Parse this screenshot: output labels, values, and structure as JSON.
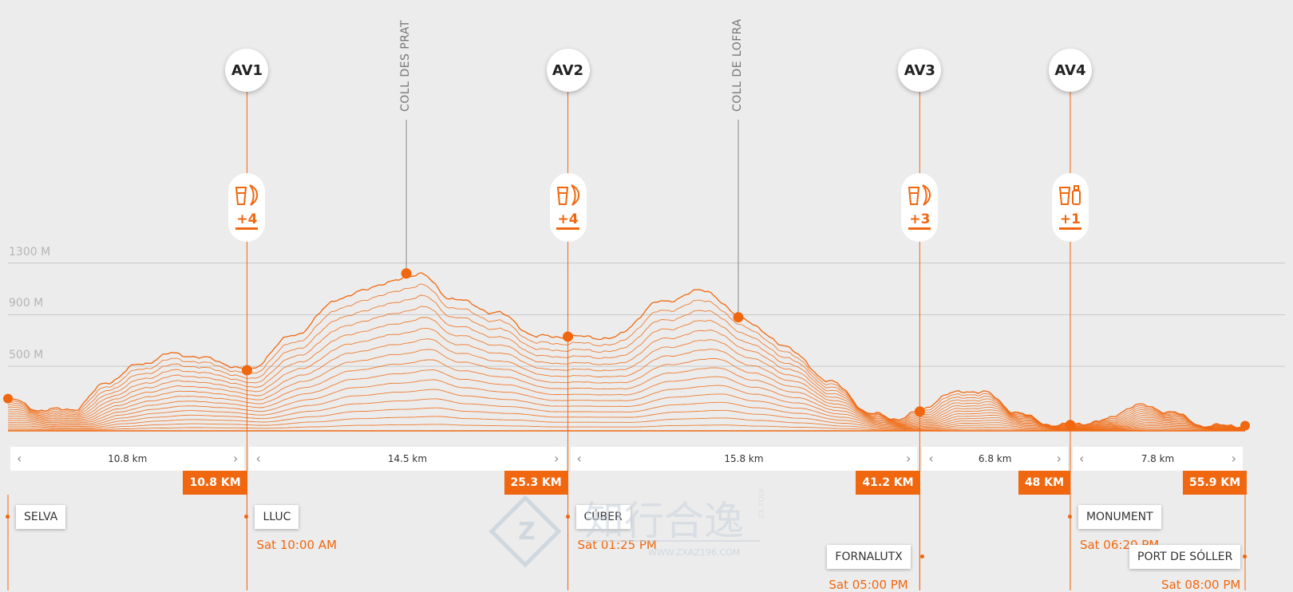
{
  "chart_data": {
    "type": "area",
    "altitude_axis": {
      "labels": [
        "1300 M",
        "900 M",
        "500 M"
      ],
      "values": [
        1300,
        900,
        500
      ],
      "grid": true
    },
    "distance_range_km": [
      0,
      55.9
    ],
    "elevation_profile": {
      "x_km": [
        0,
        1.5,
        3,
        4.5,
        6,
        7.5,
        9,
        10.8,
        13,
        15,
        17,
        18.6,
        20,
        22,
        24,
        25.3,
        27.3,
        29.5,
        31.5,
        33.1,
        35,
        37,
        39,
        40,
        41.2,
        42.5,
        44,
        45.5,
        47,
        48,
        49.5,
        51,
        52.5,
        54,
        55.9
      ],
      "altitude_m": [
        250,
        160,
        170,
        380,
        520,
        600,
        560,
        470,
        750,
        1030,
        1140,
        1220,
        1030,
        920,
        730,
        730,
        720,
        1000,
        1090,
        880,
        670,
        400,
        140,
        90,
        150,
        290,
        310,
        150,
        50,
        45,
        80,
        200,
        150,
        40,
        40
      ]
    },
    "aid_stations": [
      {
        "id": "AV1",
        "km": 10.8,
        "supplies": "+4",
        "altitude_m": 470
      },
      {
        "id": "AV2",
        "km": 25.3,
        "supplies": "+4",
        "altitude_m": 730
      },
      {
        "id": "AV3",
        "km": 41.2,
        "supplies": "+3",
        "altitude_m": 150
      },
      {
        "id": "AV4",
        "km": 48,
        "supplies": "+1",
        "altitude_m": 45
      }
    ],
    "peaks": [
      {
        "name": "COLL DES PRAT",
        "km": 18,
        "altitude_m": 1220
      },
      {
        "name": "COLL DE LOFRA",
        "km": 33,
        "altitude_m": 880
      }
    ],
    "start_point": {
      "km": 0,
      "altitude_m": 250
    },
    "finish_point": {
      "km": 55.9,
      "altitude_m": 40
    },
    "segments": [
      "10.8 km",
      "14.5 km",
      "15.8 km",
      "6.8 km",
      "7.8 km"
    ],
    "cumulative": [
      "10.8 KM",
      "25.3 KM",
      "41.2 KM",
      "48 KM",
      "55.9 KM"
    ],
    "places": [
      {
        "name": "SELVA",
        "time": ""
      },
      {
        "name": "LLUC",
        "time": "Sat 10:00 AM"
      },
      {
        "name": "CÚBER",
        "time": "Sat 01:25 PM"
      },
      {
        "name": "FORNALUTX",
        "time": "Sat 05:00 PM"
      },
      {
        "name": "MONUMENT",
        "time": "Sat 06:20 PM"
      },
      {
        "name": "PORT DE SÓLLER",
        "time": "Sat 08:00 PM"
      }
    ]
  },
  "colors": {
    "accent": "#f0670f",
    "background": "#ececec",
    "grid": "#c8c8c8"
  },
  "icons": {
    "aid": "cup-and-banana-icon",
    "aid_last": "cup-and-bottle-icon"
  },
  "watermark": {
    "text": "知行合逸",
    "side": "ZX TOUR",
    "url": "WWW.ZXAZ196.COM"
  }
}
